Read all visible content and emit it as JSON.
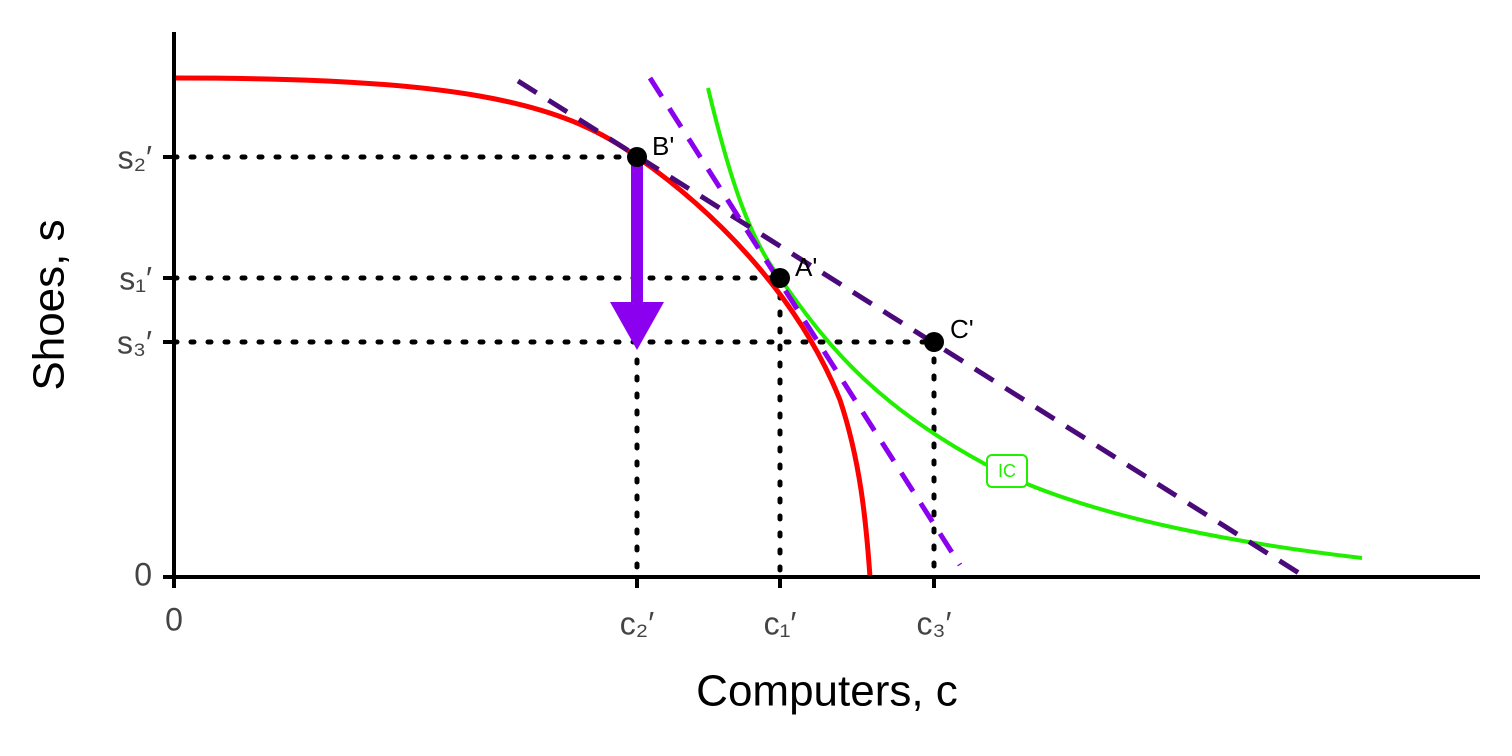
{
  "axes": {
    "x_label": "Computers, c",
    "y_label": "Shoes, s",
    "x_ticks": [
      "0",
      "c₂′",
      "c₁′",
      "c₃′"
    ],
    "y_ticks": [
      "0",
      "s₂′",
      "s₁′",
      "s₃′"
    ]
  },
  "points": [
    "B'",
    "A'",
    "C'"
  ],
  "curve_label": "IC"
}
